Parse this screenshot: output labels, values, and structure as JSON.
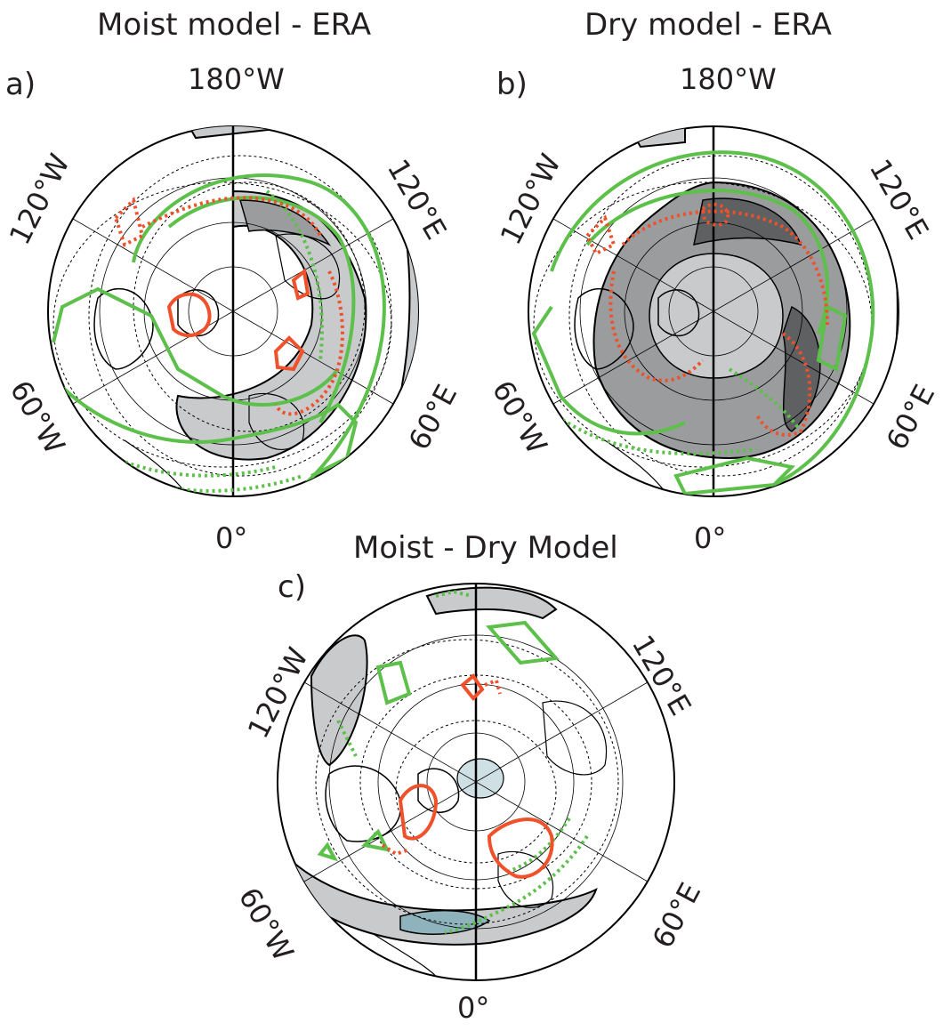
{
  "panels": [
    {
      "id": "a",
      "panel_label": "a)",
      "title": "Moist model - ERA",
      "longitude_labels": {
        "top": "180°W",
        "left_upper": "120°W",
        "right_upper": "120°E",
        "left_lower": "60°W",
        "right_lower": "60°E",
        "bottom": "0°"
      }
    },
    {
      "id": "b",
      "panel_label": "b)",
      "title": "Dry model - ERA",
      "longitude_labels": {
        "top": "180°W",
        "left_upper": "120°W",
        "right_upper": "120°E",
        "left_lower": "60°W",
        "right_lower": "60°E",
        "bottom": "0°"
      }
    },
    {
      "id": "c",
      "panel_label": "c)",
      "title": "Moist - Dry Model",
      "longitude_labels": {
        "left_upper": "120°W",
        "right_upper": "120°E",
        "left_lower": "60°W",
        "right_lower": "60°E",
        "bottom": "0°"
      }
    }
  ],
  "colors": {
    "green_contour": "#5cc04a",
    "red_contour": "#f0502a",
    "shade_light": "#c8cacc",
    "shade_mid": "#9a9c9e",
    "shade_dark": "#5e6062",
    "shade_blue": "#8fb3bd",
    "coastline": "#000000"
  },
  "map": {
    "projection": "north-polar stereographic",
    "features": [
      "coastlines",
      "latitude circles",
      "meridians",
      "dashed black contours",
      "solid green contours",
      "dotted green contours",
      "solid red contours",
      "dotted red contours",
      "gray shading"
    ]
  }
}
